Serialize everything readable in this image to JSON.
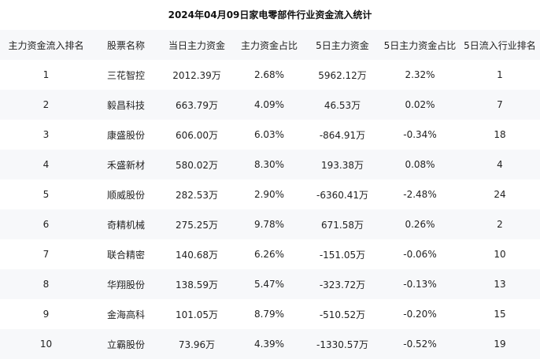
{
  "title": "2024年04月09日家电零部件行业资金流入统计",
  "headers": [
    "主力资金流入排名",
    "股票名称",
    "当日主力资金",
    "主力资金占比",
    "5日主力资金",
    "5日主力资金占比",
    "5日流入行业排名"
  ],
  "rows": [
    [
      "1",
      "三花智控",
      "2012.39万",
      "2.68%",
      "5962.12万",
      "2.32%",
      "1"
    ],
    [
      "2",
      "毅昌科技",
      "663.79万",
      "4.09%",
      "46.53万",
      "0.02%",
      "7"
    ],
    [
      "3",
      "康盛股份",
      "606.00万",
      "6.03%",
      "-864.91万",
      "-0.34%",
      "18"
    ],
    [
      "4",
      "禾盛新材",
      "580.02万",
      "8.30%",
      "193.38万",
      "0.08%",
      "4"
    ],
    [
      "5",
      "顺威股份",
      "282.53万",
      "2.90%",
      "-6360.41万",
      "-2.48%",
      "24"
    ],
    [
      "6",
      "奇精机械",
      "275.25万",
      "9.78%",
      "671.58万",
      "0.26%",
      "2"
    ],
    [
      "7",
      "联合精密",
      "140.68万",
      "6.26%",
      "-151.05万",
      "-0.06%",
      "10"
    ],
    [
      "8",
      "华翔股份",
      "138.59万",
      "5.47%",
      "-323.72万",
      "-0.13%",
      "13"
    ],
    [
      "9",
      "金海高科",
      "101.05万",
      "8.79%",
      "-510.52万",
      "-0.20%",
      "15"
    ],
    [
      "10",
      "立霸股份",
      "73.96万",
      "4.39%",
      "-1330.57万",
      "-0.52%",
      "19"
    ]
  ]
}
